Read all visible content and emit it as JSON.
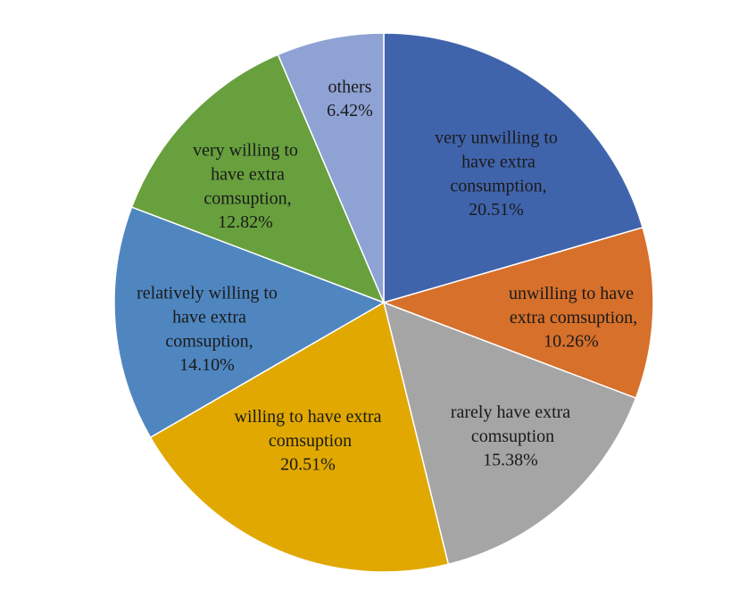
{
  "chart_data": {
    "type": "pie",
    "categories": [
      "very unwilling to have extra consumption,",
      "unwilling to have extra comsuption,",
      "rarely have extra comsuption",
      "willing to have extra comsuption",
      "relatively willing to have extra comsuption,",
      "very willing to have extra comsuption,",
      "others"
    ],
    "values": [
      20.51,
      10.26,
      15.38,
      20.51,
      14.1,
      12.82,
      6.42
    ],
    "value_labels": [
      "20.51%",
      "10.26%",
      "15.38%",
      "20.51%",
      "14.10%",
      "12.82%",
      "6.42%"
    ],
    "colors": [
      "#4064ac",
      "#d6702b",
      "#a5a5a5",
      "#e0a800",
      "#4f86c0",
      "#67a03d",
      "#8fa2d4"
    ]
  }
}
